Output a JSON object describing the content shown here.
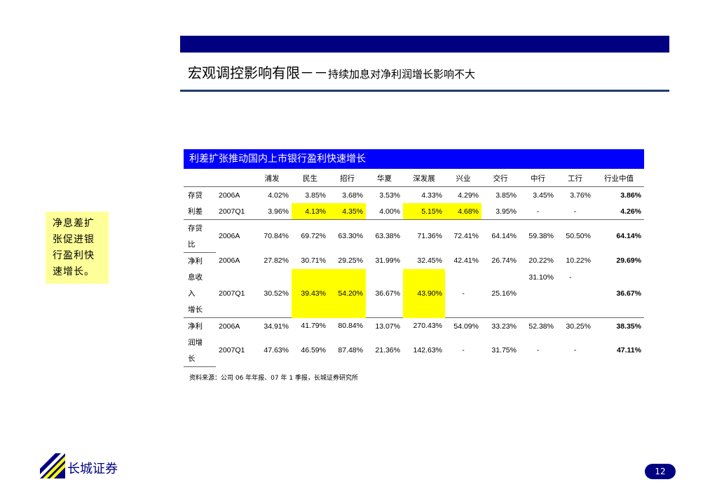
{
  "slide": {
    "title_main": "宏观调控影响有限－－",
    "title_sub": "持续加息对净利润增长影响不大",
    "side_note": "净息差扩张促进银行盈利快速增长。",
    "table_title": "利差扩张推动国内上市银行盈利快速增长",
    "columns": [
      "浦发",
      "民生",
      "招行",
      "华夏",
      "深发展",
      "兴业",
      "交行",
      "中行",
      "工行",
      "行业中值"
    ],
    "groups": [
      {
        "label_lines": [
          "存贷",
          "利差"
        ],
        "rows": [
          {
            "period": "2006A",
            "values": [
              "4.02%",
              "3.85%",
              "3.68%",
              "3.53%",
              "4.33%",
              "4.29%",
              "3.85%",
              "3.45%",
              "3.76%",
              "3.86%"
            ]
          },
          {
            "period": "2007Q1",
            "values": [
              "3.96%",
              "4.13%",
              "4.35%",
              "4.00%",
              "5.15%",
              "4.68%",
              "3.95%",
              "-",
              "-",
              "4.26%"
            ]
          }
        ]
      },
      {
        "label_lines": [
          "存贷",
          "比"
        ],
        "rows": [
          {
            "period": "2006A",
            "values": [
              "70.84%",
              "69.72%",
              "63.30%",
              "63.38%",
              "71.36%",
              "72.41%",
              "64.14%",
              "59.38%",
              "50.50%",
              "64.14%"
            ]
          }
        ]
      },
      {
        "label_lines": [
          "净利",
          "息收",
          "入",
          "增长"
        ],
        "rows": [
          {
            "period": "2006A",
            "values": [
              "27.82%",
              "30.71%",
              "29.25%",
              "31.99%",
              "32.45%",
              "42.41%",
              "26.74%",
              "20.22%",
              "10.22%",
              "29.69%"
            ]
          },
          {
            "period": "",
            "values": [
              "",
              "",
              "",
              "",
              "",
              "",
              "",
              "31.10%",
              "-",
              ""
            ]
          },
          {
            "period": "2007Q1",
            "values": [
              "30.52%",
              "39.43%",
              "54.20%",
              "36.67%",
              "43.90%",
              "-",
              "25.16%",
              "",
              "",
              "36.67%"
            ]
          }
        ]
      },
      {
        "label_lines": [
          "净利",
          "润增",
          "长"
        ],
        "rows": [
          {
            "period": "2006A",
            "values": [
              "34.91%",
              "41.79%",
              "80.84%",
              "13.07%",
              "270.43%",
              "54.09%",
              "33.23%",
              "52.38%",
              "30.25%",
              "38.35%"
            ]
          },
          {
            "period": "2007Q1",
            "values": [
              "47.63%",
              "46.59%",
              "87.48%",
              "21.36%",
              "142.63%",
              "-",
              "31.75%",
              "-",
              "-",
              "47.11%"
            ]
          }
        ]
      }
    ],
    "source": "资料来源：公司 06 年年报、07 年 1 季报，长城证券研究所",
    "brand": "长城证券",
    "page_number": "12",
    "colors": {
      "top_bar": "#000080",
      "table_header": "#0000ff",
      "highlight": "#ffff00",
      "note_bg": "#ffff99"
    }
  }
}
